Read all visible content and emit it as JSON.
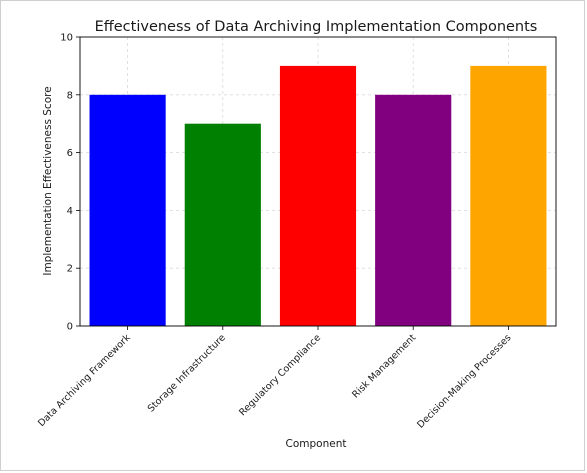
{
  "chart_data": {
    "type": "bar",
    "title": "Effectiveness of Data Archiving Implementation Components",
    "xlabel": "Component",
    "ylabel": "Implementation Effectiveness Score",
    "categories": [
      "Data Archiving Framework",
      "Storage Infrastructure",
      "Regulatory Compliance",
      "Risk Management",
      "Decision-Making Processes"
    ],
    "values": [
      8,
      7,
      9,
      8,
      9
    ],
    "colors": [
      "#0000ff",
      "#008000",
      "#ff0000",
      "#800080",
      "#ffa500"
    ],
    "ylim": [
      0,
      10
    ],
    "yticks": [
      0,
      2,
      4,
      6,
      8,
      10
    ],
    "grid": true,
    "legend": "none"
  }
}
